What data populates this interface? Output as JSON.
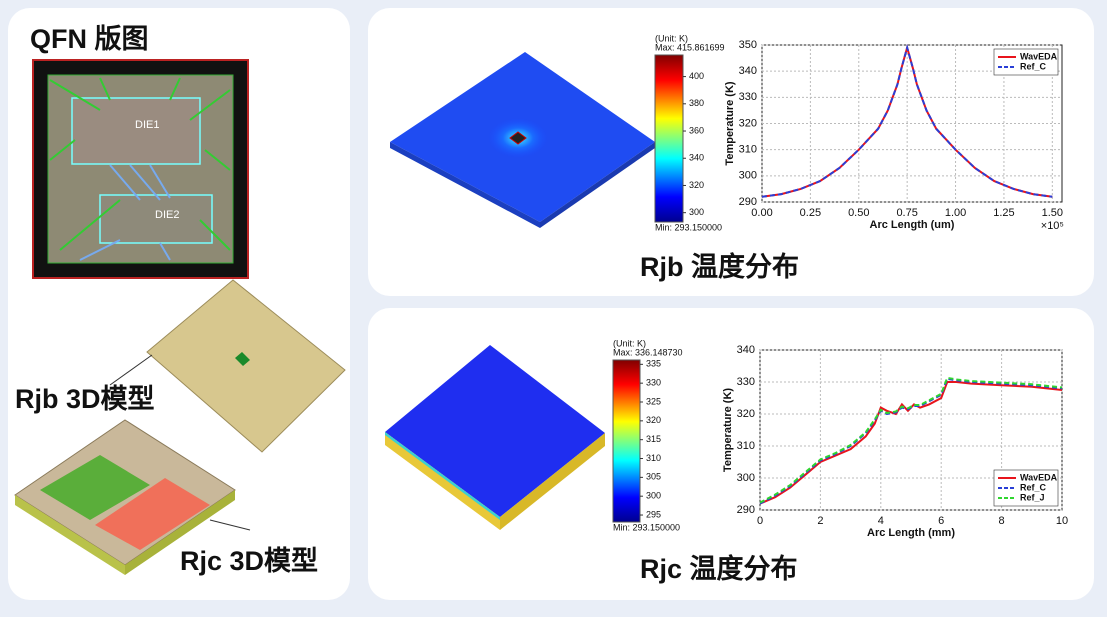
{
  "left_panel": {
    "title": "QFN 版图",
    "die_labels": [
      "DIE1",
      "DIE2"
    ],
    "model_labels": [
      "Rjb 3D模型",
      "Rjc 3D模型"
    ]
  },
  "captions": [
    "Rjb 温度分布",
    "Rjc 温度分布"
  ],
  "colorbars": [
    {
      "unit": "(Unit: K)",
      "max": {
        "value": 415.861699,
        "label": "Max: 415.861699"
      },
      "min": {
        "value": 293.15,
        "label": "Min: 293.150000"
      },
      "ticks": [
        300,
        320,
        340,
        360,
        380,
        400
      ]
    },
    {
      "unit": "(Unit: K)",
      "max": {
        "value": 336.14873,
        "label": "Max: 336.148730"
      },
      "min": {
        "value": 293.15,
        "label": "Min: 293.150000"
      },
      "ticks": [
        295,
        300,
        305,
        310,
        315,
        320,
        325,
        330,
        335
      ]
    }
  ],
  "chart_data": [
    {
      "type": "line",
      "x_label": "Arc Length (um)",
      "y_label": "Temperature (K)",
      "x_scale_label": "×10⁵",
      "x": [
        0,
        0.1,
        0.2,
        0.3,
        0.4,
        0.5,
        0.55,
        0.6,
        0.65,
        0.7,
        0.72,
        0.75,
        0.78,
        0.8,
        0.85,
        0.9,
        0.95,
        1.0,
        1.1,
        1.2,
        1.3,
        1.4,
        1.5
      ],
      "series": [
        {
          "name": "WavEDA",
          "color": "#e8141c",
          "linestyle": "solid",
          "values": [
            292,
            293,
            295,
            298,
            303,
            310,
            314,
            318,
            325,
            335,
            341,
            349,
            341,
            335,
            325,
            318,
            314,
            310,
            303,
            298,
            295,
            293,
            292
          ]
        },
        {
          "name": "Ref_C",
          "color": "#2a3fd6",
          "linestyle": "dashed",
          "values": [
            292,
            293,
            295,
            298,
            303,
            310,
            314,
            318,
            325,
            335,
            341,
            349,
            341,
            335,
            325,
            318,
            314,
            310,
            303,
            298,
            295,
            293,
            292
          ]
        }
      ],
      "xlim": [
        0,
        1.55
      ],
      "ylim": [
        290,
        350
      ],
      "xticks": [
        {
          "value": 0,
          "label": "0.00"
        },
        {
          "value": 0.25,
          "label": "0.25"
        },
        {
          "value": 0.5,
          "label": "0.50"
        },
        {
          "value": 0.75,
          "label": "0.75"
        },
        {
          "value": 1,
          "label": "1.00"
        },
        {
          "value": 1.25,
          "label": "1.25"
        },
        {
          "value": 1.5,
          "label": "1.50"
        }
      ],
      "yticks": [
        290,
        300,
        310,
        320,
        330,
        340,
        350
      ],
      "grid": true,
      "legend": "upper right"
    },
    {
      "type": "line",
      "x_label": "Arc Length (mm)",
      "y_label": "Temperature (K)",
      "x": [
        0,
        0.5,
        1,
        1.5,
        2,
        2.5,
        3,
        3.5,
        3.8,
        4,
        4.2,
        4.5,
        4.7,
        4.9,
        5.1,
        5.3,
        5.6,
        6,
        6.2,
        6.5,
        7,
        8,
        9,
        9.5,
        10
      ],
      "series": [
        {
          "name": "WavEDA",
          "color": "#e8141c",
          "linestyle": "solid",
          "values": [
            292,
            294,
            297,
            301,
            305,
            307,
            309,
            313,
            317,
            322,
            321,
            320,
            323,
            321,
            323,
            322,
            323,
            325,
            330,
            330,
            329.5,
            329,
            328.5,
            328,
            327.5
          ]
        },
        {
          "name": "Ref_C",
          "color": "#2a3fd6",
          "linestyle": "dashed",
          "values": [
            292,
            294.5,
            297.5,
            301.5,
            305.5,
            307.5,
            310,
            314,
            318,
            321,
            320,
            320.5,
            322,
            321.5,
            322.5,
            322.5,
            324,
            326,
            331,
            330.5,
            330,
            329.5,
            329,
            328.5,
            328
          ]
        },
        {
          "name": "Ref_J",
          "color": "#2fd62f",
          "linestyle": "dashed",
          "values": [
            292.3,
            294.8,
            297.8,
            301.8,
            305.8,
            307.8,
            310.3,
            314.3,
            318.3,
            321.3,
            320.3,
            320.8,
            322.3,
            321.8,
            322.8,
            322.8,
            324.3,
            326.3,
            331.3,
            330.8,
            330.3,
            329.8,
            329.3,
            328.8,
            328.3
          ]
        }
      ],
      "xlim": [
        0,
        10
      ],
      "ylim": [
        290,
        340
      ],
      "xticks": [
        0,
        2,
        4,
        6,
        8,
        10
      ],
      "yticks": [
        290,
        300,
        310,
        320,
        330,
        340
      ],
      "grid": true,
      "legend": "lower right"
    }
  ]
}
